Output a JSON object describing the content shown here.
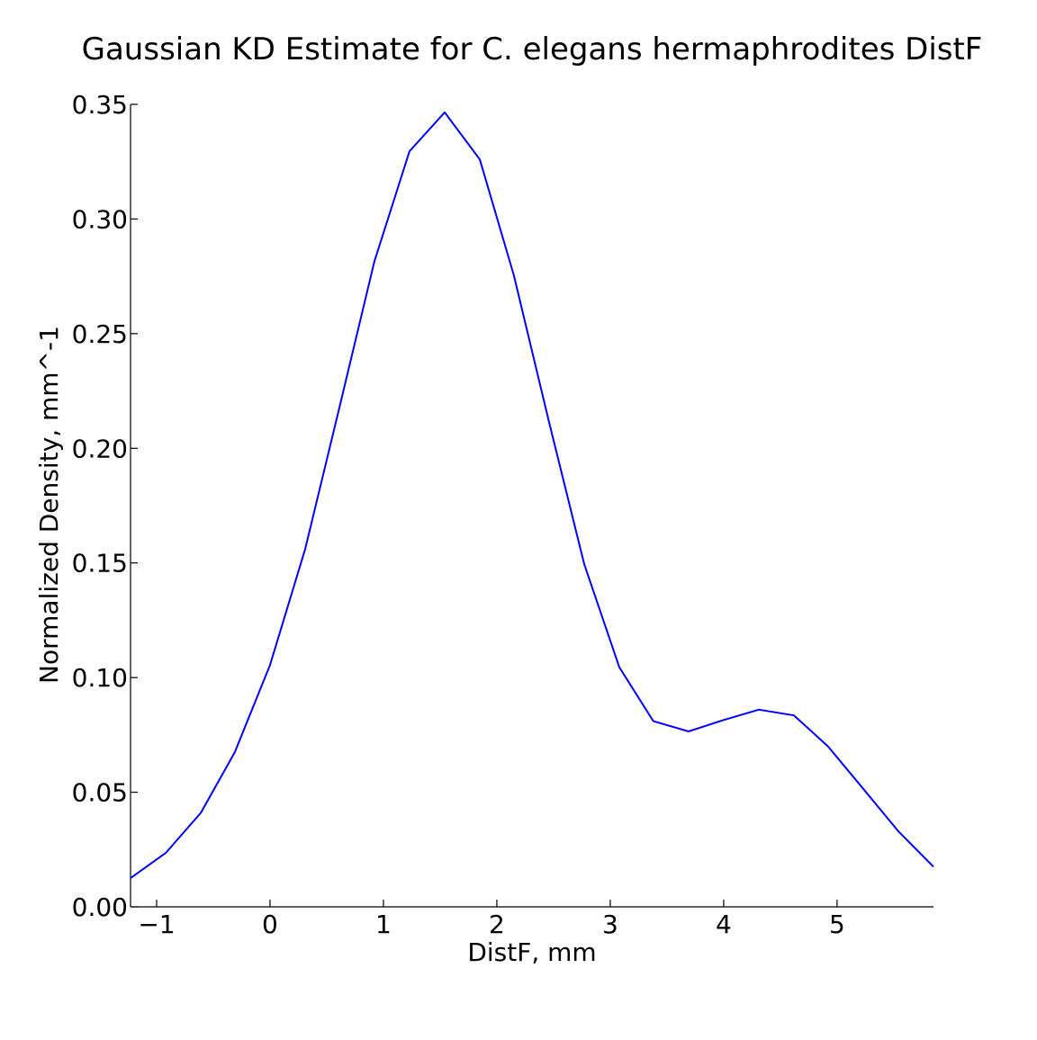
{
  "chart_data": {
    "type": "line",
    "title": "Gaussian KD Estimate for C. elegans hermaphrodites DistF",
    "xlabel": "DistF, mm",
    "ylabel": "Normalized Density, mm^-1",
    "xlim": [
      -1.23,
      5.85
    ],
    "ylim": [
      0,
      0.35
    ],
    "xticks": [
      {
        "value": -1,
        "label": "−1"
      },
      {
        "value": 0,
        "label": "0"
      },
      {
        "value": 1,
        "label": "1"
      },
      {
        "value": 2,
        "label": "2"
      },
      {
        "value": 3,
        "label": "3"
      },
      {
        "value": 4,
        "label": "4"
      },
      {
        "value": 5,
        "label": "5"
      }
    ],
    "yticks": [
      {
        "value": 0,
        "label": "0.00"
      },
      {
        "value": 0.05,
        "label": "0.05"
      },
      {
        "value": 0.1,
        "label": "0.10"
      },
      {
        "value": 0.15,
        "label": "0.15"
      },
      {
        "value": 0.2,
        "label": "0.20"
      },
      {
        "value": 0.25,
        "label": "0.25"
      },
      {
        "value": 0.3,
        "label": "0.30"
      },
      {
        "value": 0.35,
        "label": "0.35"
      }
    ],
    "grid": false,
    "series": [
      {
        "color": "#0000ff",
        "x": [
          -1.23,
          -0.92,
          -0.61,
          -0.31,
          0.0,
          0.31,
          0.62,
          0.92,
          1.23,
          1.54,
          1.85,
          2.15,
          2.46,
          2.77,
          3.08,
          3.38,
          3.69,
          4.0,
          4.31,
          4.62,
          4.92,
          5.23,
          5.54,
          5.85
        ],
        "y": [
          0.0125,
          0.0235,
          0.041,
          0.0675,
          0.1055,
          0.156,
          0.2195,
          0.2815,
          0.3295,
          0.3465,
          0.326,
          0.2755,
          0.2115,
          0.1495,
          0.1045,
          0.081,
          0.0765,
          0.0815,
          0.086,
          0.0835,
          0.07,
          0.0515,
          0.033,
          0.0175
        ]
      }
    ]
  }
}
